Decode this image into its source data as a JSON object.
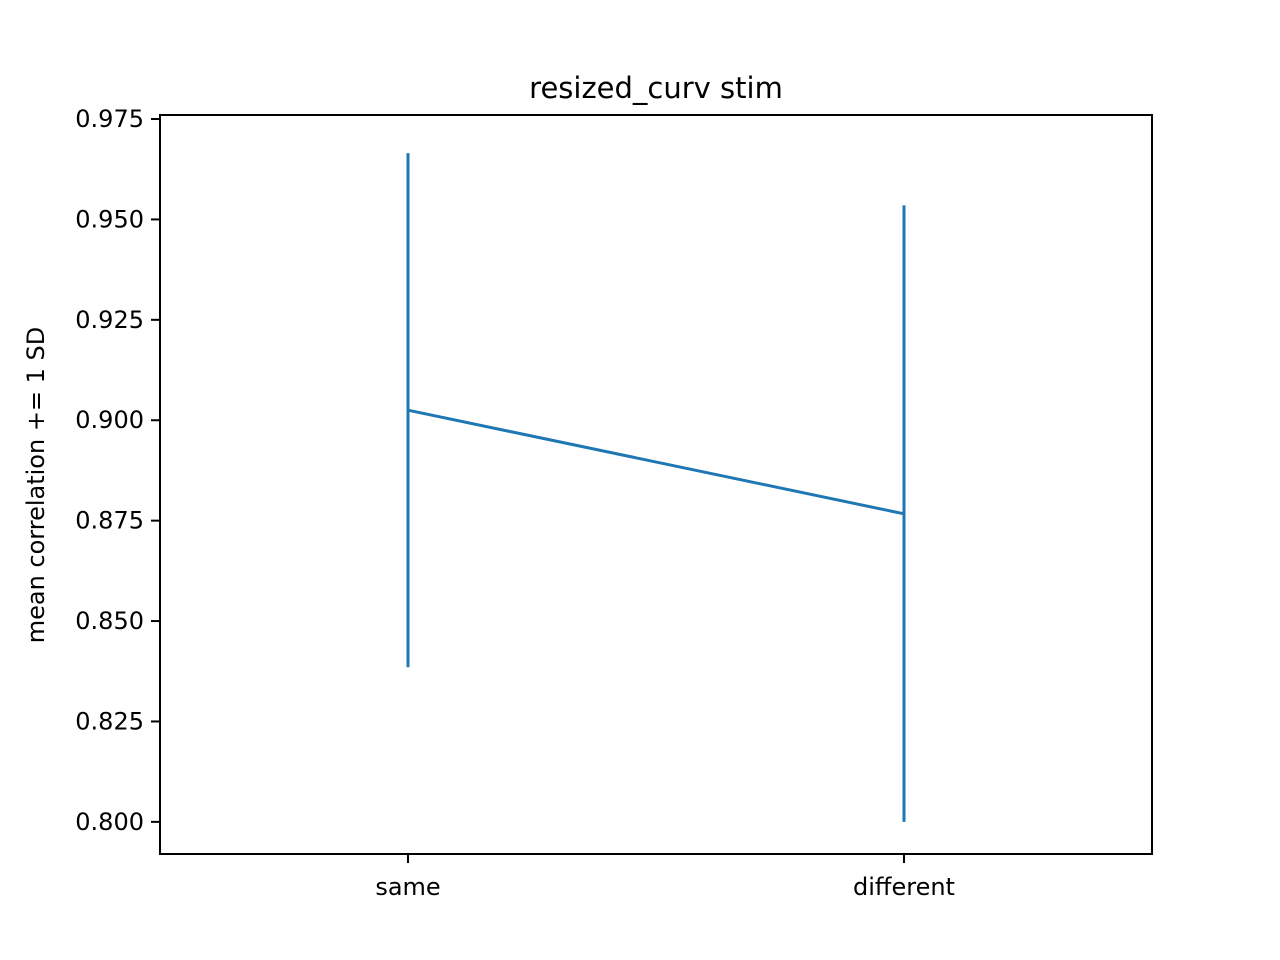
{
  "chart_data": {
    "type": "line",
    "title": "resized_curv stim",
    "xlabel": "",
    "ylabel": "mean correlation += 1 SD",
    "categories": [
      "same",
      "different"
    ],
    "series": [
      {
        "values": [
          0.9025,
          0.8767
        ],
        "error_low": [
          0.8385,
          0.8
        ],
        "error_high": [
          0.9665,
          0.9535
        ],
        "color": "#1f77b4"
      }
    ],
    "ylim": [
      0.792,
      0.976
    ],
    "yticks": [
      "0.800",
      "0.825",
      "0.850",
      "0.875",
      "0.900",
      "0.925",
      "0.950",
      "0.975"
    ],
    "grid": false,
    "legend": false
  }
}
